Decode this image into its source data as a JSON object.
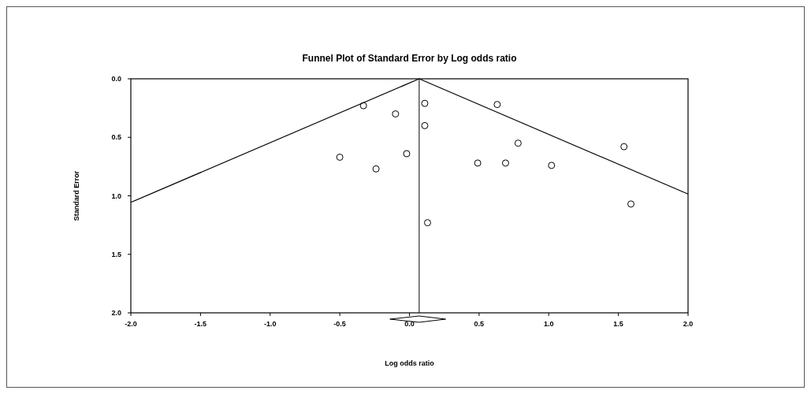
{
  "chart_data": {
    "type": "scatter",
    "title": "Funnel Plot of Standard Error by Log odds ratio",
    "xlabel": "Log odds ratio",
    "ylabel": "Standard Error",
    "xlim": [
      -2,
      2
    ],
    "xticks": [
      {
        "value": -2,
        "label": "-2.0"
      },
      {
        "value": -1.5,
        "label": "-1.5"
      },
      {
        "value": -1,
        "label": "-1.0"
      },
      {
        "value": -0.5,
        "label": "-0.5"
      },
      {
        "value": 0,
        "label": "0.0"
      },
      {
        "value": 0.5,
        "label": "0.5"
      },
      {
        "value": 1,
        "label": "1.0"
      },
      {
        "value": 1.5,
        "label": "1.5"
      },
      {
        "value": 2,
        "label": "2.0"
      }
    ],
    "ylim": [
      2,
      0
    ],
    "yticks": [
      {
        "value": 0,
        "label": "0.0"
      },
      {
        "value": 0.5,
        "label": "0.5"
      },
      {
        "value": 1,
        "label": "1.0"
      },
      {
        "value": 1.5,
        "label": "1.5"
      },
      {
        "value": 2,
        "label": "2.0"
      }
    ],
    "grid": false,
    "series": [
      {
        "color": "#000000",
        "marker": "circle",
        "x": [
          -0.33,
          -0.1,
          -0.02,
          -0.5,
          -0.24,
          0.11,
          0.11,
          0.13,
          0.63,
          0.78,
          0.49,
          0.69,
          1.02,
          1.54,
          1.59
        ],
        "values": [
          0.23,
          0.3,
          0.64,
          0.67,
          0.77,
          0.21,
          0.4,
          1.23,
          0.22,
          0.55,
          0.72,
          0.72,
          0.74,
          0.58,
          1.07
        ]
      },
      {
        "type": "line",
        "color": "#000000",
        "marker": "none",
        "line_style": "solid",
        "x": [
          0.07,
          -2
        ],
        "values": [
          0,
          1.056
        ]
      },
      {
        "type": "line",
        "color": "#000000",
        "marker": "none",
        "line_style": "solid",
        "x": [
          0.07,
          2
        ],
        "values": [
          0,
          0.985
        ]
      }
    ],
    "ref_lines": [
      {
        "axis": "x",
        "value": 0.07,
        "color": "#000000",
        "line_style": "solid"
      }
    ]
  }
}
